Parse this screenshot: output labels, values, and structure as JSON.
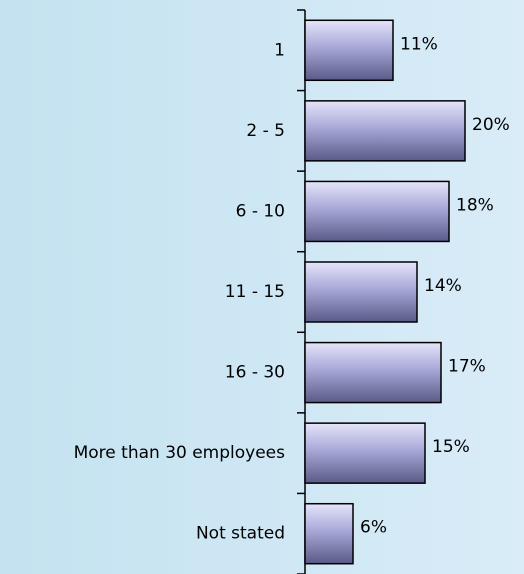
{
  "chart_data": {
    "type": "bar",
    "orientation": "horizontal",
    "categories": [
      "1",
      "2 - 5",
      "6 - 10",
      "11 - 15",
      "16 - 30",
      "More than 30 employees",
      "Not stated"
    ],
    "values": [
      11,
      20,
      18,
      14,
      17,
      15,
      6
    ],
    "value_labels": [
      "11%",
      "20%",
      "18%",
      "14%",
      "17%",
      "15%",
      "6%"
    ],
    "color": "#a8a8d8"
  }
}
